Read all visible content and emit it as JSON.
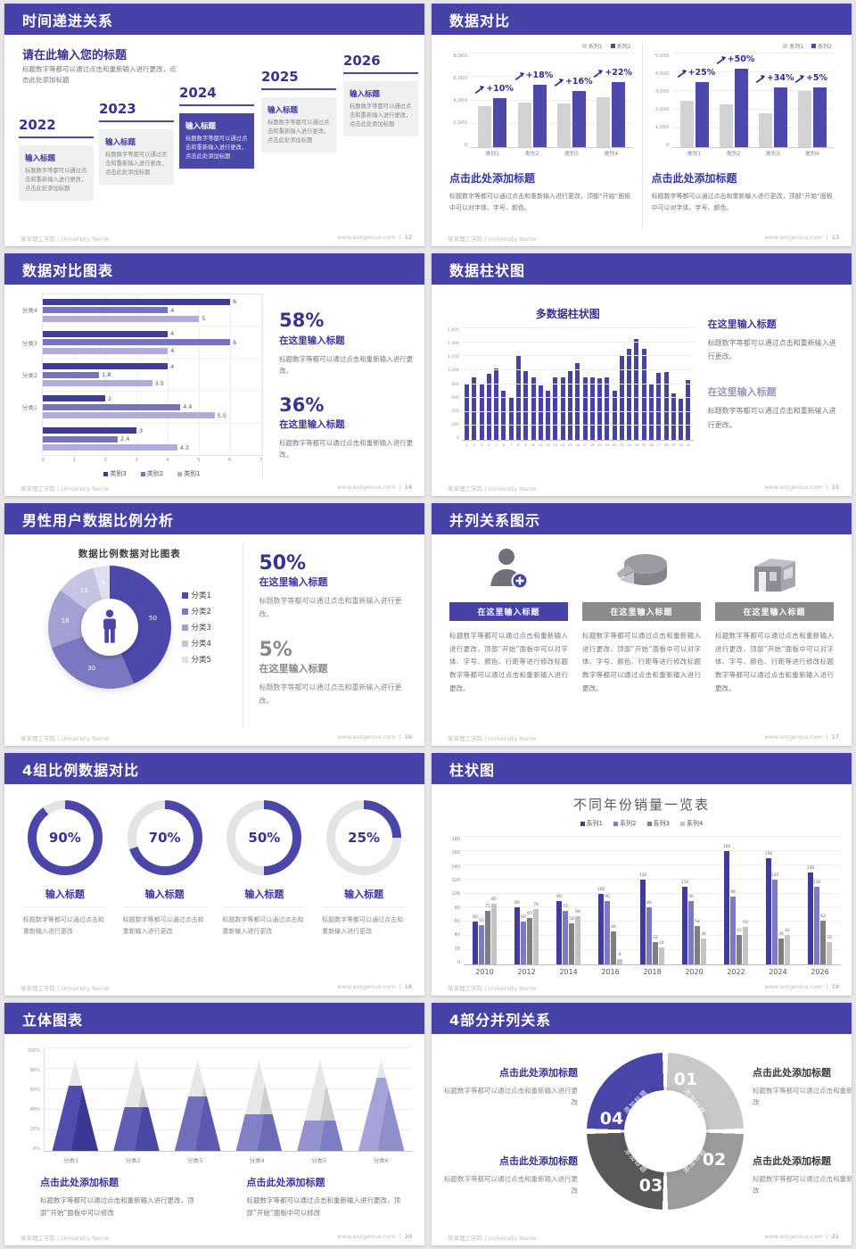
{
  "footer": {
    "left": "某某理工学院 | University Name",
    "site": "www.aotgenius.com",
    "sep": "|"
  },
  "palette": {
    "primary": "#4642a8",
    "accent_dark": "#37338f",
    "bar_purple": "#4c49ab",
    "bar_gray": "#d3d3d6"
  },
  "s12": {
    "title": "时间递进关系",
    "page": "12",
    "heading": "请在此输入您的标题",
    "intro": "标题数字等都可以通过点击和重新输入进行更改，点击此处添加标题",
    "box_title": "输入标题",
    "box_text": "标题数字等都可以通过点击和重新输入进行更改，点击此处添加标题",
    "years": [
      "2022",
      "2023",
      "2024",
      "2025",
      "2026"
    ]
  },
  "s13": {
    "title": "数据对比",
    "page": "13",
    "block_title": "点击此处添加标题",
    "block_body": "标题数字等都可以通过点击和重新输入进行更改，顶部“开始”面板中可以对字体、字号、颜色。"
  },
  "s14": {
    "title": "数据对比图表",
    "page": "14",
    "stats": [
      {
        "pct": "58%",
        "subtitle": "在这里输入标题",
        "body": "标题数字等都可以通过点击和重新输入进行更改。"
      },
      {
        "pct": "36%",
        "subtitle": "在这里输入标题",
        "body": "标题数字等都可以通过点击和重新输入进行更改。"
      }
    ]
  },
  "s15": {
    "title": "数据柱状图",
    "page": "15",
    "blocks": [
      {
        "heading": "在这里输入标题",
        "body": "标题数字等都可以通过点击和重新输入进行更改。"
      },
      {
        "heading": "在这里输入标题",
        "body": "标题数字等都可以通过点击和重新输入进行更改。"
      }
    ]
  },
  "s16": {
    "title": "男性用户数据比例分析",
    "page": "16",
    "stats": [
      {
        "pct": "50%",
        "subtitle": "在这里输入标题",
        "body": "标题数字等都可以通过点击和重新输入进行更改。"
      },
      {
        "pct": "5%",
        "subtitle": "在这里输入标题",
        "body": "标题数字等都可以通过点击和重新输入进行更改。"
      }
    ]
  },
  "s17": {
    "title": "并列关系图示",
    "page": "17",
    "header_label": "在这里输入标题",
    "icons": [
      "nurse-plus-icon",
      "pie-3d-icon",
      "building-icon"
    ],
    "body": "标题数字等都可以通过点击和重新输入进行更改，顶部“开始”面板中可以对字体、字号、颜色、行距等进行修改标题数字等都可以通过点击和重新输入进行更改。"
  },
  "s18": {
    "title": "4组比例数据对比",
    "page": "18",
    "card_title": "输入标题",
    "card_body": "标题数字等都可以通过点击和重新输入进行更改"
  },
  "s19": {
    "title": "柱状图",
    "page": "19"
  },
  "s20": {
    "title": "立体图表",
    "page": "20",
    "blocks": [
      {
        "heading": "点击此处添加标题",
        "body": "标题数字等都可以通过点击和重新输入进行更改，顶部“开始”面板中可以修改"
      },
      {
        "heading": "点击此处添加标题",
        "body": "标题数字等都可以通过点击和重新输入进行更改，顶部“开始”面板中可以修改"
      }
    ]
  },
  "s21": {
    "title": "4部分并列关系",
    "page": "21",
    "block_heading": "点击此处添加标题",
    "block_body": "标题数字等都可以通过点击和重新输入进行更改",
    "numbers": [
      "01",
      "02",
      "03",
      "04"
    ],
    "segment_label": "添加标题",
    "segment_colors": [
      "#c9c9cc",
      "#9b9b9e",
      "#59595c",
      "#4a46a9"
    ]
  },
  "chart_data": [
    {
      "slide": "13",
      "position": "left",
      "type": "bar",
      "legend_position": "top-right",
      "categories": [
        "类别1",
        "类别2",
        "类别3",
        "类别4"
      ],
      "series": [
        {
          "name": "系列1",
          "color": "#d3d3d6",
          "values": [
            3500,
            3800,
            3700,
            4300
          ]
        },
        {
          "name": "系列2",
          "color": "#4c49ab",
          "values": [
            4200,
            5300,
            4800,
            5600
          ]
        }
      ],
      "growth_labels": [
        "+10%",
        "+18%",
        "+16%",
        "+22%"
      ],
      "ylim": [
        0,
        8000
      ],
      "yticks": [
        "8,000",
        "6,000",
        "4,000",
        "2,000",
        "0"
      ]
    },
    {
      "slide": "13",
      "position": "right",
      "type": "bar",
      "legend_position": "top-right",
      "categories": [
        "类别1",
        "类别2",
        "类别3",
        "类别4"
      ],
      "series": [
        {
          "name": "系列1",
          "color": "#d3d3d6",
          "values": [
            2500,
            2300,
            1800,
            3000
          ]
        },
        {
          "name": "系列2",
          "color": "#4c49ab",
          "values": [
            3500,
            4200,
            3200,
            3200
          ]
        }
      ],
      "growth_labels": [
        "+25%",
        "+50%",
        "+34%",
        "+5%"
      ],
      "ylim": [
        0,
        5000
      ],
      "yticks": [
        "5,000",
        "4,000",
        "3,000",
        "2,000",
        "1,000",
        "0"
      ]
    },
    {
      "slide": "14",
      "type": "bar-horizontal",
      "legend_position": "bottom",
      "groups": [
        "分类4",
        "分类3",
        "分类2",
        "分类1",
        ""
      ],
      "series": [
        {
          "name": "类别3",
          "color": "#3f3c9b",
          "values": [
            6,
            4,
            4,
            2,
            3
          ]
        },
        {
          "name": "类别2",
          "color": "#7774bf",
          "values": [
            4,
            6,
            1.8,
            4.4,
            2.4
          ]
        },
        {
          "name": "类别1",
          "color": "#b0aed8",
          "values": [
            5,
            4,
            3.5,
            5.5,
            4.3
          ]
        }
      ],
      "xlim": [
        0,
        7
      ],
      "xticks": [
        "0",
        "1",
        "2",
        "3",
        "4",
        "5",
        "6",
        "7"
      ]
    },
    {
      "slide": "15",
      "type": "bar",
      "title": "多数据柱状图",
      "x": [
        1,
        2,
        3,
        4,
        5,
        6,
        7,
        8,
        9,
        10,
        11,
        12,
        13,
        14,
        15,
        16,
        17,
        18,
        19,
        20,
        21,
        22,
        23,
        24,
        25,
        26,
        27,
        28,
        29,
        30,
        31
      ],
      "values": [
        800,
        900,
        800,
        950,
        1020,
        700,
        600,
        1200,
        980,
        900,
        780,
        700,
        890,
        900,
        990,
        1100,
        900,
        900,
        880,
        900,
        700,
        1200,
        1300,
        1450,
        1300,
        800,
        960,
        970,
        660,
        590,
        860
      ],
      "bar_color": "#4643a5",
      "ylim": [
        0,
        1600
      ],
      "yticks": [
        "1,600",
        "1,400",
        "1,200",
        "1,000",
        "800",
        "600",
        "400",
        "200",
        "0"
      ]
    },
    {
      "slide": "16",
      "type": "donut",
      "title": "数据比例数据对比图表",
      "labels": [
        "分类1",
        "分类2",
        "分类3",
        "分类4",
        "分类5"
      ],
      "values": [
        50,
        30,
        18,
        12,
        5
      ],
      "colors": [
        "#4c49ab",
        "#7b78c2",
        "#a3a1d4",
        "#c6c4e3",
        "#e0dff0"
      ],
      "center_icon": "male-person-icon"
    },
    {
      "slide": "18",
      "type": "progress-rings",
      "values": [
        90,
        70,
        50,
        25
      ],
      "ring_color": "#4a47a9",
      "track_color": "#e4e4e6"
    },
    {
      "slide": "19",
      "type": "bar",
      "title": "不同年份销量一览表",
      "categories": [
        "2010",
        "2012",
        "2014",
        "2016",
        "2018",
        "2020",
        "2022",
        "2024",
        "2026"
      ],
      "series": [
        {
          "name": "系列1",
          "color": "#403c9e",
          "values": [
            60,
            80,
            90,
            100,
            120,
            110,
            160,
            150,
            130
          ]
        },
        {
          "name": "系列2",
          "color": "#7c79c5",
          "values": [
            55,
            60,
            75,
            90,
            80,
            90,
            96,
            120,
            110
          ]
        },
        {
          "name": "系列3",
          "color": "#7f7f83",
          "values": [
            75,
            65,
            58,
            46,
            32,
            54,
            42,
            36,
            62
          ]
        },
        {
          "name": "系列4",
          "color": "#c3c3c8",
          "values": [
            85,
            78,
            68,
            8,
            24,
            36,
            53,
            42,
            32
          ]
        }
      ],
      "ylim": [
        0,
        180
      ],
      "yticks": [
        "180",
        "160",
        "140",
        "120",
        "100",
        "80",
        "60",
        "40",
        "20",
        "0"
      ]
    },
    {
      "slide": "20",
      "type": "cone",
      "categories": [
        "分类1",
        "分类2",
        "分类3",
        "分类4",
        "分类5",
        "分类6"
      ],
      "values_pct": [
        72,
        48,
        60,
        40,
        33,
        80
      ],
      "yticks": [
        "100%",
        "80%",
        "60%",
        "40%",
        "20%",
        "0%"
      ],
      "fill_colors": [
        [
          "#4f4cae",
          "#3b3895"
        ],
        [
          "#605db6",
          "#4b48a4"
        ],
        [
          "#716ebe",
          "#5c59ae"
        ],
        [
          "#8280c6",
          "#6d6ab8"
        ],
        [
          "#9391ce",
          "#7e7cc2"
        ],
        [
          "#a5a3d8",
          "#908ecb"
        ]
      ]
    }
  ]
}
